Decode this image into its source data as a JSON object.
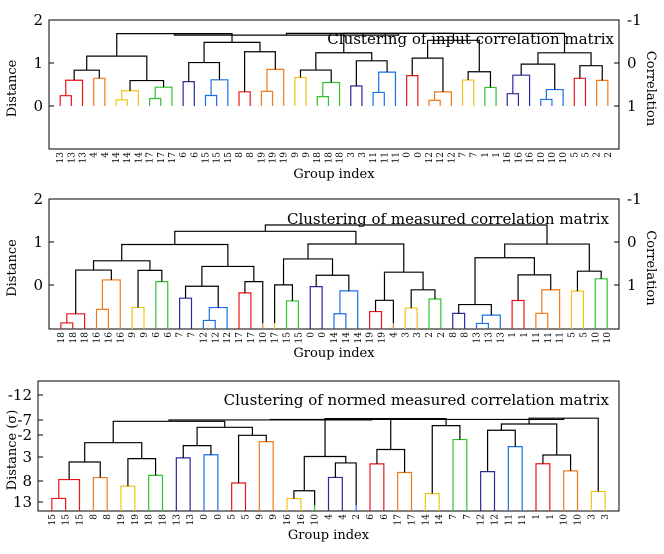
{
  "colors": {
    "cluster": [
      "#e8141b",
      "#f07a1a",
      "#f2c417",
      "#2ec22e",
      "#2a2a9a",
      "#1a6ee8"
    ],
    "link": "#000000"
  },
  "chart_data": [
    {
      "type": "dendrogram",
      "title": "Clustering of input correlation matrix",
      "xlabel": "Group index",
      "ylabel": "Distance",
      "y2label": "Correlation",
      "yticks": [
        "2",
        "1",
        "0"
      ],
      "yticks_right": [
        "-1",
        "0",
        "1"
      ],
      "ylim": [
        2,
        -0.5
      ],
      "leaves": [
        "13",
        "13",
        "13",
        "4",
        "4",
        "14",
        "14",
        "14",
        "17",
        "17",
        "17",
        "6",
        "6",
        "15",
        "15",
        "15",
        "8",
        "8",
        "19",
        "19",
        "19",
        "9",
        "9",
        "18",
        "18",
        "18",
        "3",
        "3",
        "11",
        "11",
        "11",
        "0",
        "0",
        "12",
        "12",
        "12",
        "7",
        "7",
        "1",
        "1",
        "16",
        "16",
        "16",
        "10",
        "10",
        "10",
        "5",
        "5",
        "2",
        "2"
      ]
    },
    {
      "type": "dendrogram",
      "title": "Clustering of measured correlation matrix",
      "xlabel": "Group index",
      "ylabel": "Distance",
      "y2label": "Correlation",
      "yticks": [
        "2",
        "1",
        "0"
      ],
      "yticks_right": [
        "-1",
        "0",
        "1"
      ],
      "ylim": [
        2,
        -1
      ],
      "leaves": [
        "18",
        "18",
        "18",
        "16",
        "16",
        "16",
        "9",
        "9",
        "6",
        "6",
        "7",
        "7",
        "12",
        "12",
        "12",
        "17",
        "17",
        "10",
        "17",
        "15",
        "15",
        "0",
        "0",
        "14",
        "14",
        "14",
        "19",
        "19",
        "4",
        "3",
        "3",
        "2",
        "2",
        "8",
        "8",
        "13",
        "13",
        "13",
        "1",
        "1",
        "11",
        "11",
        "11",
        "5",
        "5",
        "10",
        "10"
      ]
    },
    {
      "type": "dendrogram",
      "title": "Clustering of normed measured correlation matrix",
      "xlabel": "Group index",
      "ylabel": "Distance (σ)",
      "yticks": [
        "-12",
        "-7",
        "-2",
        "3",
        "8",
        "13"
      ],
      "ylim": [
        -12,
        15
      ],
      "leaves": [
        "15",
        "15",
        "15",
        "8",
        "8",
        "19",
        "19",
        "18",
        "18",
        "13",
        "13",
        "0",
        "0",
        "5",
        "5",
        "9",
        "9",
        "16",
        "16",
        "10",
        "4",
        "4",
        "2",
        "6",
        "6",
        "17",
        "17",
        "14",
        "14",
        "7",
        "7",
        "12",
        "12",
        "11",
        "11",
        "1",
        "1",
        "10",
        "10",
        "3",
        "3"
      ]
    }
  ]
}
